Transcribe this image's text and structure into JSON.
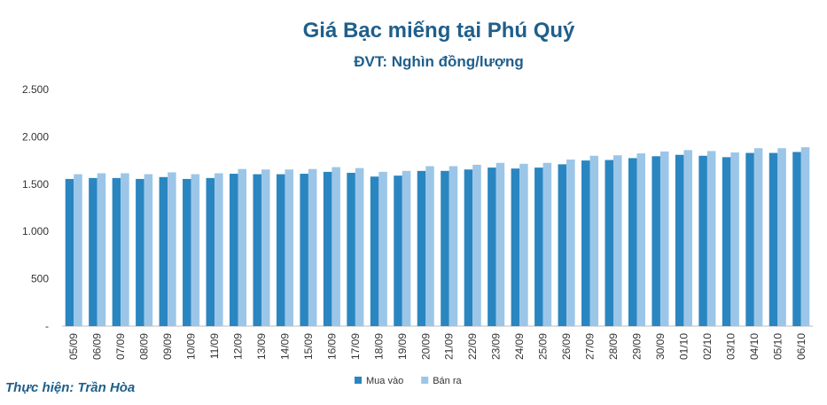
{
  "chart_data": {
    "type": "bar",
    "title": "Giá Bạc miếng tại Phú Quý",
    "subtitle": "ĐVT: Nghìn đồng/lượng",
    "credit": "Thực hiện: Trần Hòa",
    "categories": [
      "05/09",
      "06/09",
      "07/09",
      "08/09",
      "09/09",
      "10/09",
      "11/09",
      "12/09",
      "13/09",
      "14/09",
      "15/09",
      "16/09",
      "17/09",
      "18/09",
      "19/09",
      "20/09",
      "21/09",
      "22/09",
      "23/09",
      "24/09",
      "25/09",
      "26/09",
      "27/09",
      "28/09",
      "29/09",
      "30/09",
      "01/10",
      "02/10",
      "03/10",
      "04/10",
      "05/10",
      "06/10"
    ],
    "series": [
      {
        "name": "Mua vào",
        "color": "#2a86c0",
        "values": [
          1555,
          1565,
          1565,
          1555,
          1575,
          1555,
          1565,
          1610,
          1605,
          1605,
          1610,
          1630,
          1620,
          1580,
          1590,
          1640,
          1640,
          1655,
          1675,
          1665,
          1675,
          1710,
          1750,
          1755,
          1775,
          1795,
          1810,
          1800,
          1785,
          1830,
          1830,
          1840
        ]
      },
      {
        "name": "Bán ra",
        "color": "#9cc6e8",
        "values": [
          1605,
          1615,
          1615,
          1605,
          1625,
          1605,
          1615,
          1660,
          1655,
          1655,
          1660,
          1680,
          1670,
          1630,
          1640,
          1690,
          1690,
          1705,
          1725,
          1715,
          1725,
          1760,
          1800,
          1805,
          1825,
          1845,
          1860,
          1850,
          1835,
          1880,
          1880,
          1890
        ]
      }
    ],
    "ylim": [
      0,
      2500
    ],
    "yticks": [
      {
        "value": 0,
        "label": "-"
      },
      500,
      {
        "value": 1000,
        "label": "1.000"
      },
      {
        "value": 1500,
        "label": "1.500"
      },
      {
        "value": 2000,
        "label": "2.000"
      },
      {
        "value": 2500,
        "label": "2.500"
      }
    ]
  }
}
